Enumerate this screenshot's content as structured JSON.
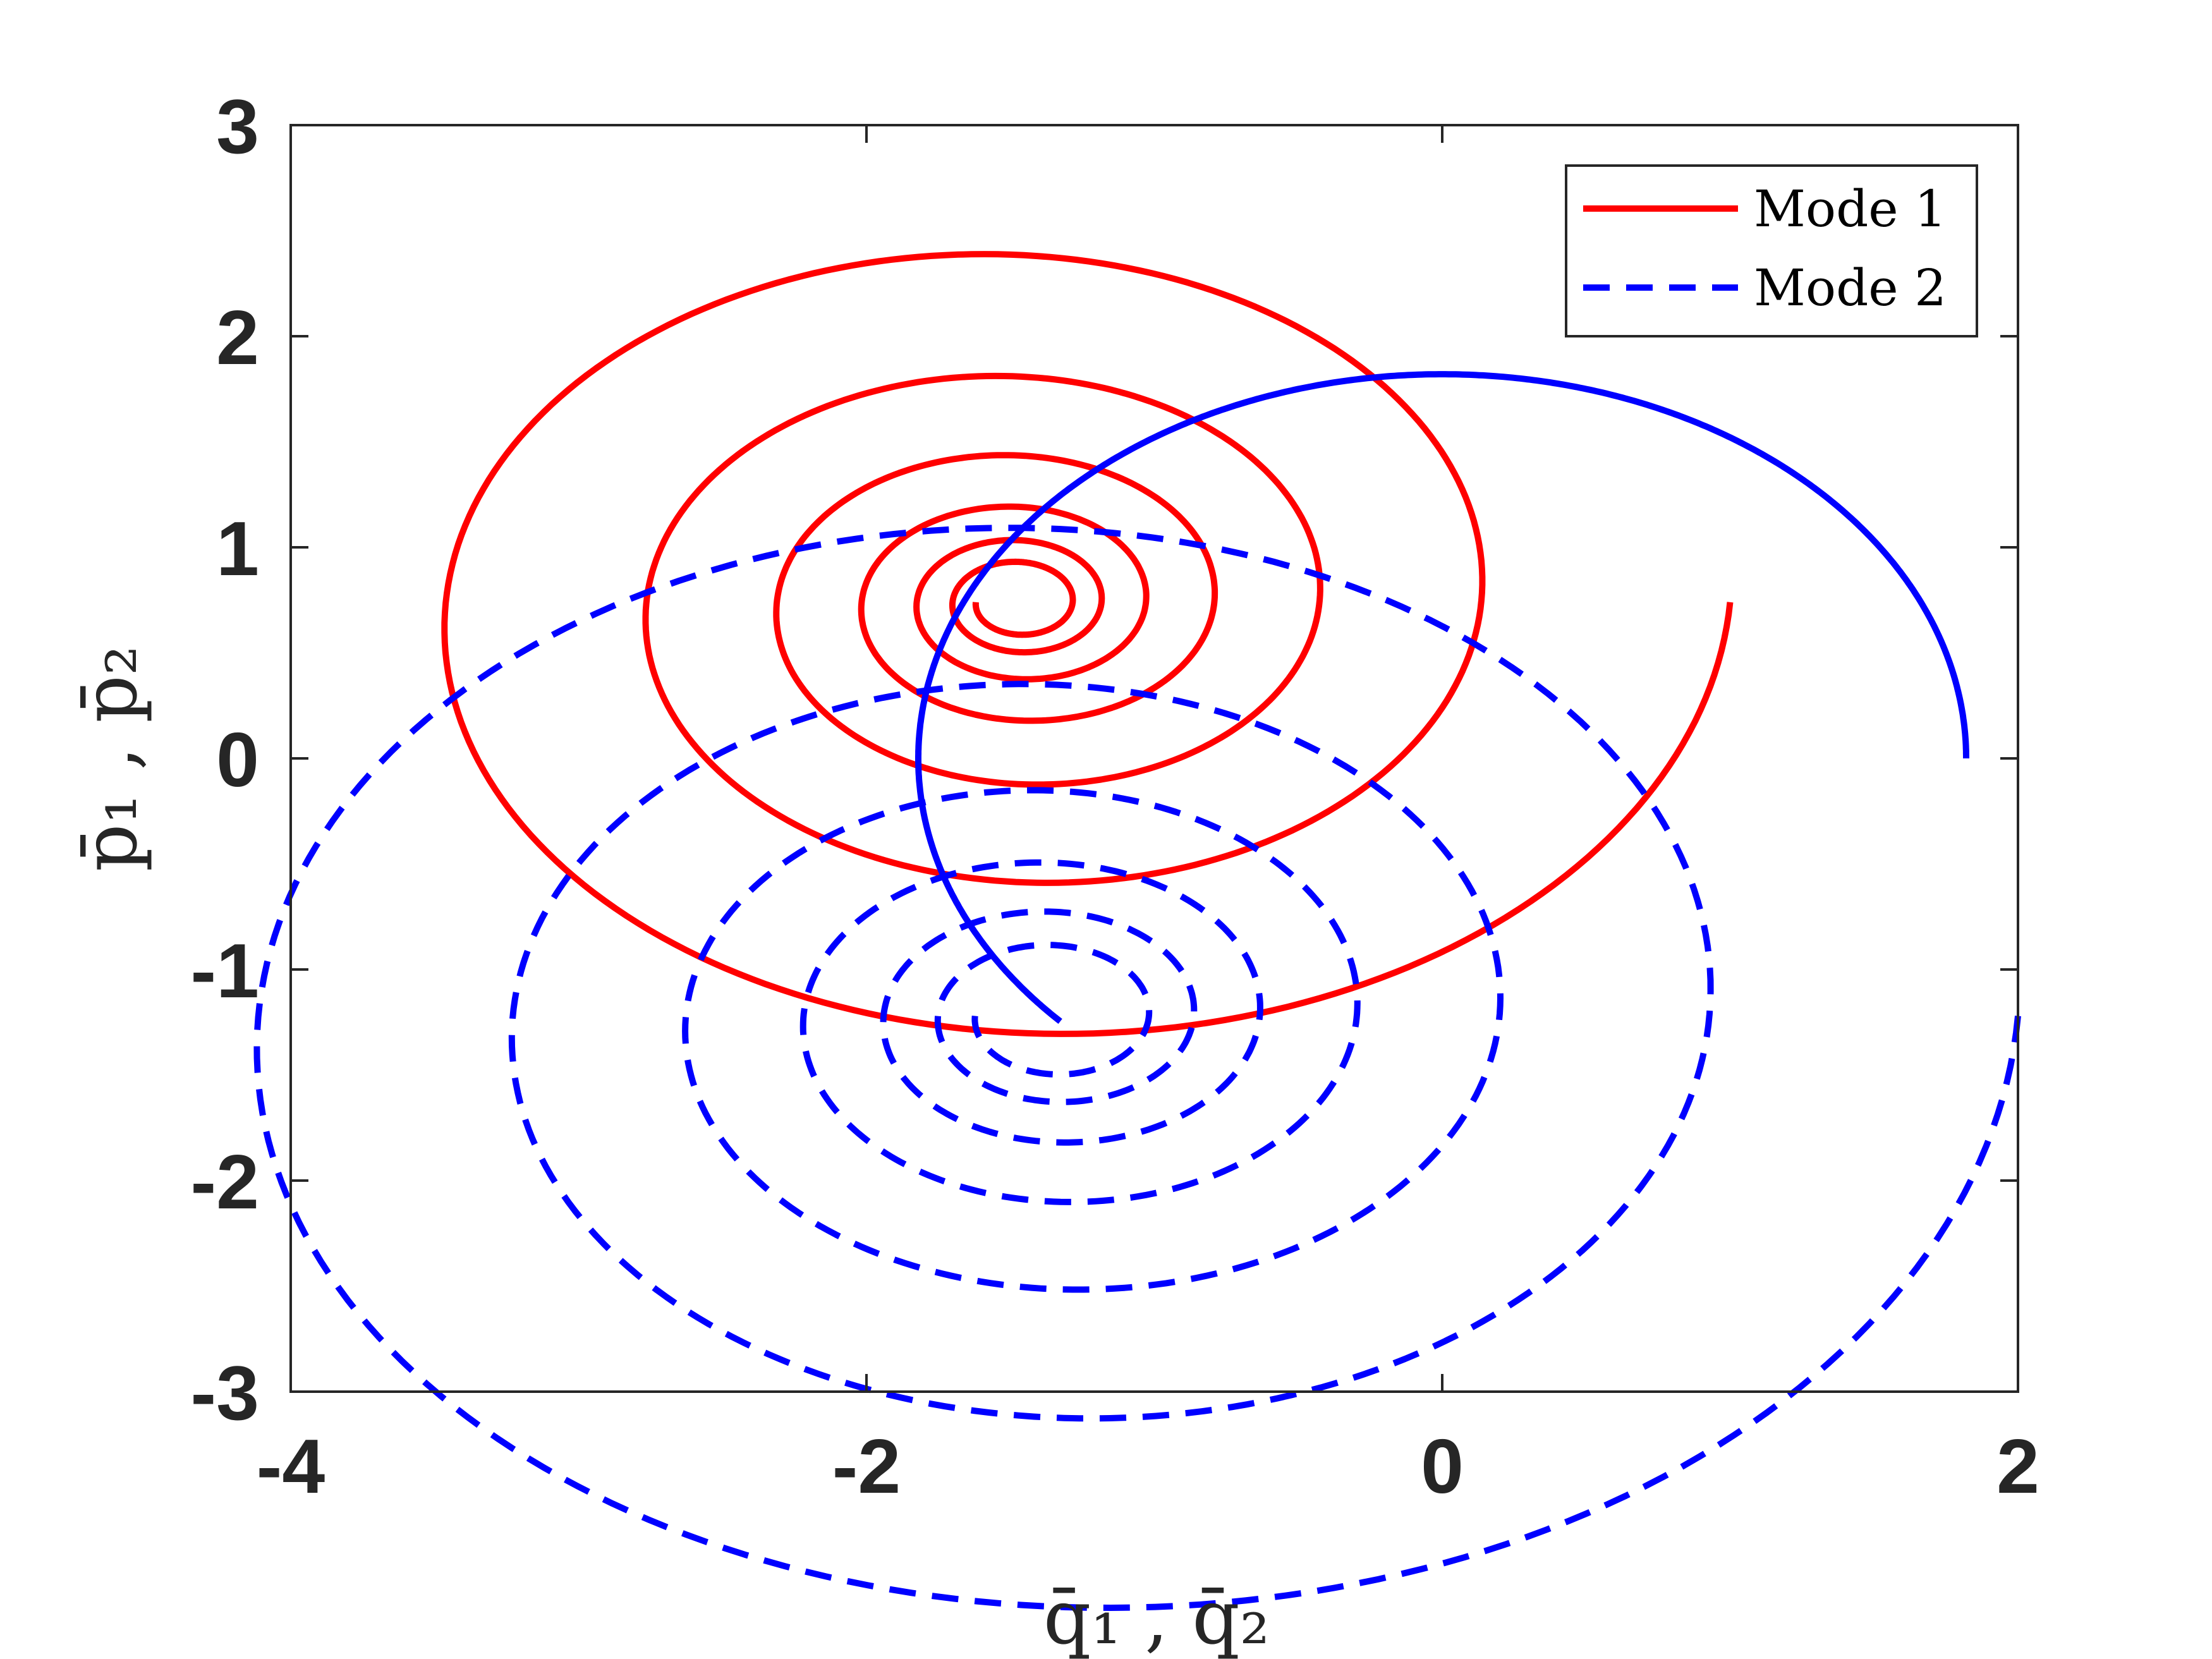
{
  "chart_data": {
    "type": "line",
    "title": "",
    "xlabel": "q̄₁ , q̄₂",
    "ylabel": "p̄₁ , p̄₂",
    "xlim": [
      -4,
      2
    ],
    "ylim": [
      -3,
      3
    ],
    "xticks": [
      -4,
      -2,
      0,
      2
    ],
    "yticks": [
      -3,
      -2,
      -1,
      0,
      1,
      2,
      3
    ],
    "xtick_labels": [
      "-4",
      "-2",
      "0",
      "2"
    ],
    "ytick_labels": [
      "-3",
      "-2",
      "-1",
      "0",
      "1",
      "2",
      "3"
    ],
    "grid": false,
    "legend": {
      "position": "top-right",
      "entries": [
        "Mode 1",
        "Mode 2"
      ]
    },
    "series": [
      {
        "name": "Mode 1",
        "style": "solid",
        "color": "#ff0000",
        "curves": [
          {
            "kind": "damped-spiral",
            "start": [
              1.0,
              0.0
            ],
            "center": [
              -1.47,
              0.74
            ],
            "turns": 6.5,
            "start_phase": 0,
            "decay_per_turn": 0.65,
            "direction": "clockwise"
          }
        ]
      },
      {
        "name": "Mode 2",
        "style": "dashed",
        "color": "#0000ff",
        "curves": [
          {
            "kind": "damped-spiral",
            "start": [
              2.0,
              0.0
            ],
            "center": [
              -1.35,
              -1.22
            ],
            "turns": 6.5,
            "start_phase": 0,
            "decay_per_turn": 0.68,
            "direction": "clockwise"
          }
        ]
      },
      {
        "name": "",
        "style": "solid",
        "color": "#0000ff",
        "curves": [
          {
            "kind": "ellipse",
            "center": [
              0.0,
              0.0
            ],
            "rx": 1.82,
            "ry": 1.82,
            "sweep_from": 0,
            "sweep_to": 0.62
          }
        ]
      }
    ]
  }
}
